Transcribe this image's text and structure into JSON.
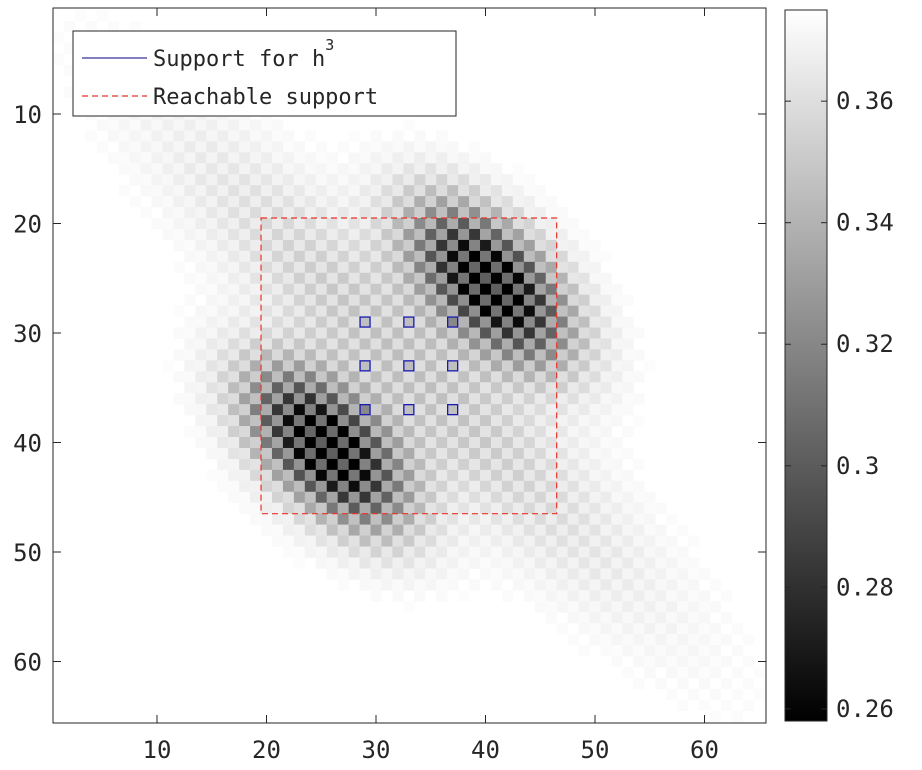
{
  "chart_data": {
    "type": "heatmap",
    "title": "",
    "xlabel": "",
    "ylabel": "",
    "xlim": [
      1,
      65
    ],
    "ylim": [
      1,
      65
    ],
    "y_reversed": true,
    "xticks": [
      10,
      20,
      30,
      40,
      50,
      60
    ],
    "yticks": [
      10,
      20,
      30,
      40,
      50,
      60
    ],
    "xtick_labels": [
      "10",
      "20",
      "30",
      "40",
      "50",
      "60"
    ],
    "ytick_labels": [
      "10",
      "20",
      "30",
      "40",
      "50",
      "60"
    ],
    "colormap": "gray",
    "clim": [
      0.258,
      0.375
    ],
    "colorbar_ticks": [
      0.26,
      0.28,
      0.3,
      0.32,
      0.34,
      0.36
    ],
    "colorbar_tick_labels": [
      "0.26",
      "0.28",
      "0.3",
      "0.32",
      "0.34",
      "0.36"
    ],
    "background_value": 0.375,
    "grid": false,
    "legend": {
      "position": "top-left",
      "entries": [
        {
          "label": "Support for h",
          "superscript": "3",
          "style": "solid",
          "color": "#000080"
        },
        {
          "label": "Reachable support",
          "style": "dashed",
          "color": "#e8332a"
        }
      ]
    },
    "reachable_support": {
      "x_range": [
        20,
        46
      ],
      "y_range": [
        20,
        46
      ],
      "color": "#e8332a"
    },
    "marker_points": {
      "marker": "square",
      "color": "#1a1ab3",
      "points": [
        [
          29,
          29
        ],
        [
          33,
          29
        ],
        [
          37,
          29
        ],
        [
          29,
          33
        ],
        [
          33,
          33
        ],
        [
          37,
          33
        ],
        [
          29,
          37
        ],
        [
          33,
          37
        ],
        [
          37,
          37
        ]
      ]
    },
    "pattern": {
      "description": "diagonal band along i=j with checkerboard texture; dark lobes near (25,40) and (40,25)",
      "band_sigma": 4.5,
      "lobes": [
        {
          "x": 25.5,
          "y": 40.5,
          "strength": 0.11
        },
        {
          "x": 40.5,
          "y": 25.5,
          "strength": 0.11
        }
      ],
      "lobe_sigma_along": 6.0,
      "lobe_sigma_across": 3.2,
      "halo_strength": 0.022,
      "halo_sigma_along": 26,
      "halo_sigma_across": 2.8,
      "checker_amplitude": 0.55
    }
  }
}
